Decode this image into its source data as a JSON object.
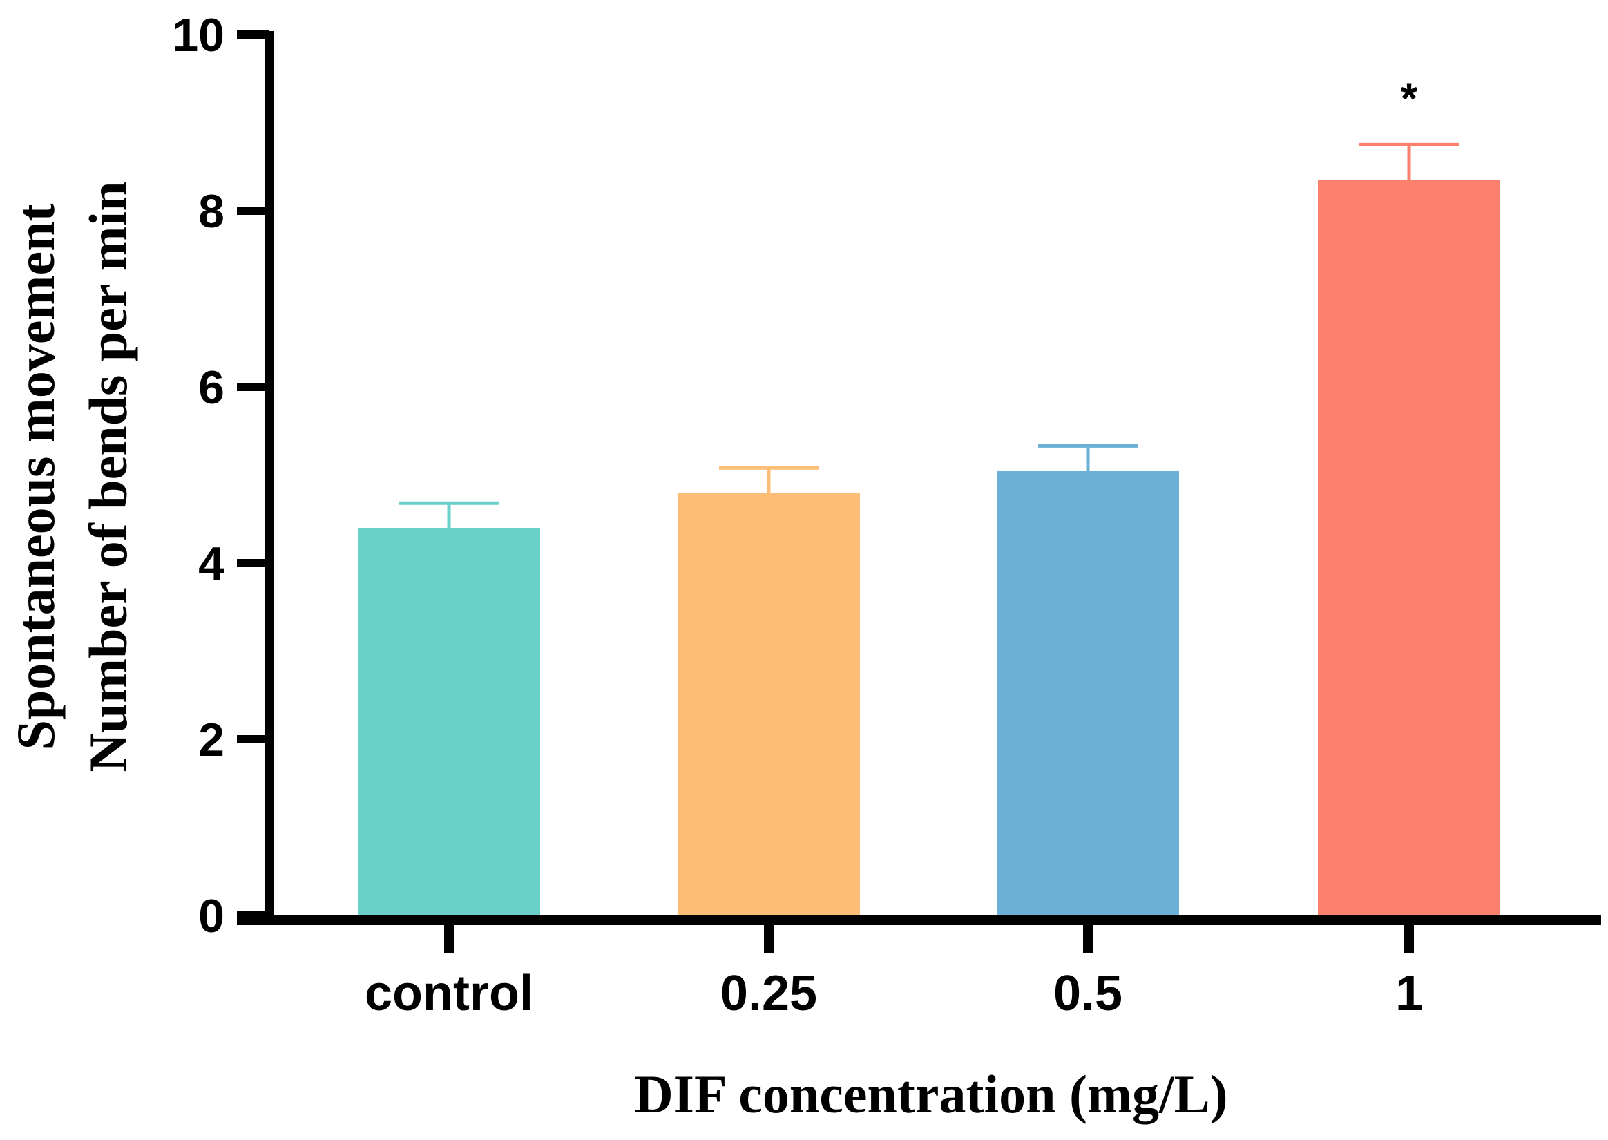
{
  "chart_data": {
    "type": "bar",
    "title": "",
    "categories": [
      "control",
      "0.25",
      "0.5",
      "1"
    ],
    "values": [
      4.4,
      4.8,
      5.05,
      8.35
    ],
    "errors": [
      0.28,
      0.28,
      0.28,
      0.4
    ],
    "colors": [
      "#6AD1CA",
      "#FDBD77",
      "#6AB1D5",
      "#FD7F6E"
    ],
    "significance": [
      "",
      "",
      "",
      "*"
    ],
    "xlabel": "DIF concentration (mg/L)",
    "ylabel_lines": [
      "Spontaneous movement",
      "Number of bends per min"
    ],
    "ylim": [
      0,
      10
    ],
    "yticks": [
      0,
      2,
      4,
      6,
      8,
      10
    ],
    "ytick_labels": [
      "0",
      "2",
      "4",
      "6",
      "8",
      "10"
    ],
    "grid": false,
    "legend": "none"
  }
}
